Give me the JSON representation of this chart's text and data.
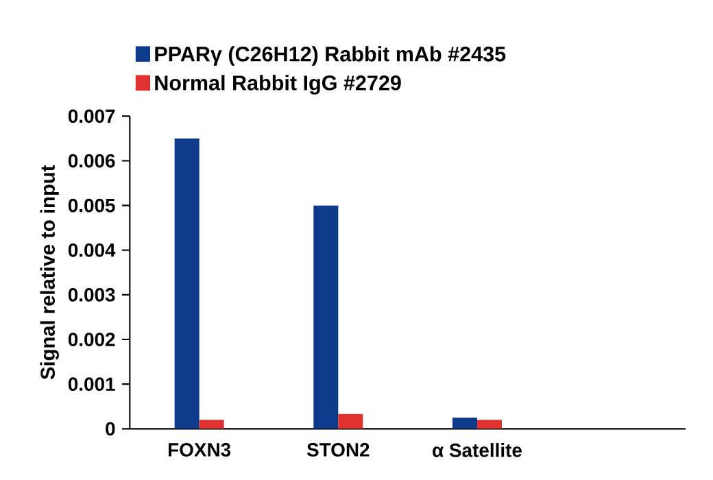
{
  "chart_data": {
    "type": "bar",
    "ylabel": "Signal relative to input",
    "categories": [
      "FOXN3",
      "STON2",
      "α Satellite",
      null
    ],
    "series": [
      {
        "name": "PPARγ (C26H12) Rabbit mAb #2435",
        "color": "#0d3a8a",
        "values": [
          0.0065,
          0.005,
          0.00025,
          null
        ]
      },
      {
        "name": "Normal Rabbit IgG #2729",
        "color": "#e03131",
        "values": [
          0.0002,
          0.00033,
          0.0002,
          null
        ]
      }
    ],
    "ylim": [
      0,
      0.007
    ],
    "yticks": [
      0,
      0.001,
      0.002,
      0.003,
      0.004,
      0.005,
      0.006,
      0.007
    ],
    "legend": "top",
    "grid": false
  }
}
